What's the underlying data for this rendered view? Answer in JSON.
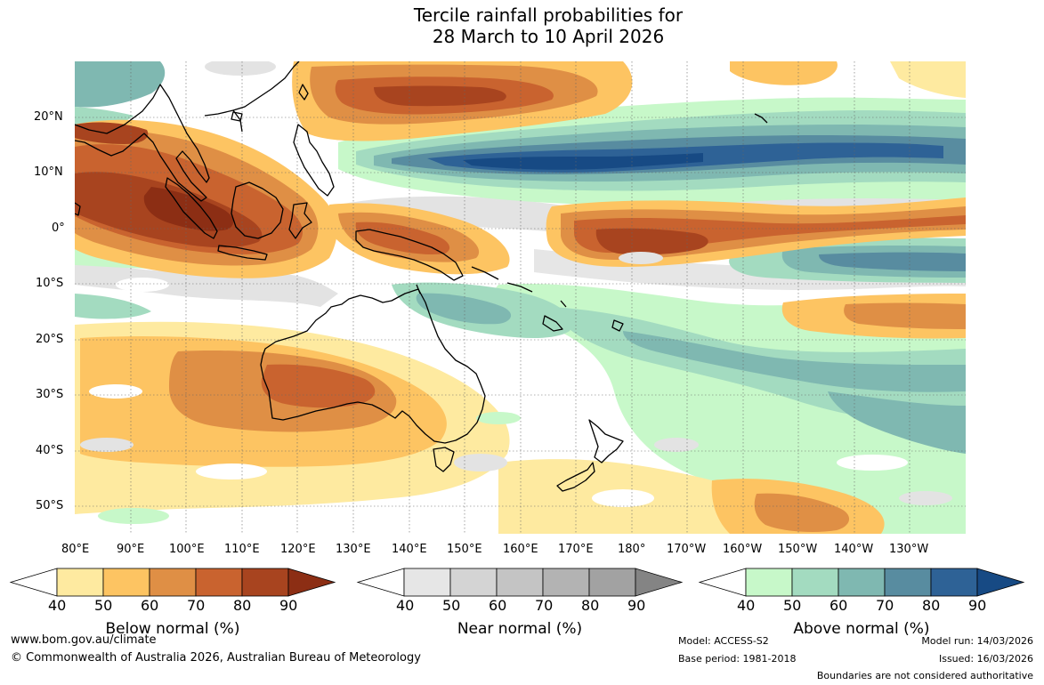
{
  "title": {
    "line1": "Tercile rainfall probabilities for",
    "line2": "28 March to 10 April 2026"
  },
  "map": {
    "lat_labels": [
      "20°N",
      "10°N",
      "0°",
      "10°S",
      "20°S",
      "30°S",
      "40°S",
      "50°S"
    ],
    "lon_labels": [
      "80°E",
      "90°E",
      "100°E",
      "110°E",
      "120°E",
      "130°E",
      "140°E",
      "150°E",
      "160°E",
      "170°E",
      "180°",
      "170°W",
      "160°W",
      "150°W",
      "140°W",
      "130°W"
    ],
    "region": "Indian Ocean, Maritime Continent, Australia and Western Pacific"
  },
  "colorbars": [
    {
      "title": "Below normal (%)",
      "ticks": [
        "40",
        "50",
        "60",
        "70",
        "80",
        "90"
      ],
      "colors": [
        "#ffffff",
        "#feeaa0",
        "#fdc462",
        "#df8f45",
        "#c9632f",
        "#a8441f",
        "#8c2e14"
      ]
    },
    {
      "title": "Near normal (%)",
      "ticks": [
        "40",
        "50",
        "60",
        "70",
        "80",
        "90"
      ],
      "colors": [
        "#ffffff",
        "#e6e6e6",
        "#d4d4d4",
        "#c4c4c4",
        "#b3b3b3",
        "#a2a2a2",
        "#848484"
      ]
    },
    {
      "title": "Above normal (%)",
      "ticks": [
        "40",
        "50",
        "60",
        "70",
        "80",
        "90"
      ],
      "colors": [
        "#ffffff",
        "#c7f8c9",
        "#a3dbc0",
        "#7fb8b1",
        "#588ca0",
        "#2e6296",
        "#174a84"
      ]
    }
  ],
  "footer": {
    "url": "www.bom.gov.au/climate",
    "copyright": "© Commonwealth of Australia 2026, Australian Bureau of Meteorology",
    "model": "Model: ACCESS-S2",
    "base_period": "Base period: 1981-2018",
    "model_run": "Model run: 14/03/2026",
    "issued": "Issued: 16/03/2026",
    "disclaimer": "Boundaries are not considered authoritative"
  }
}
